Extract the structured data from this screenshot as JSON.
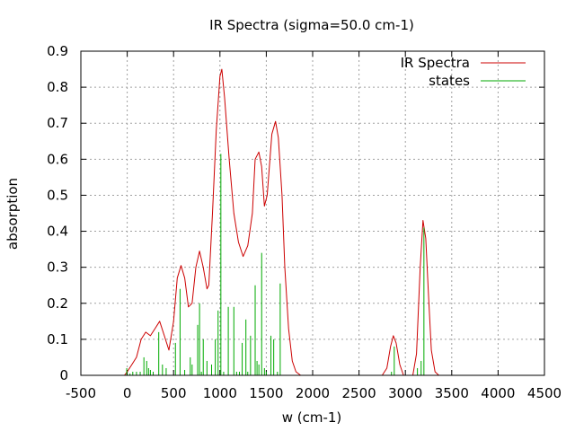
{
  "chart_data": {
    "type": "line",
    "title": "IR Spectra (sigma=50.0 cm-1)",
    "xlabel": "w (cm-1)",
    "ylabel": "absorption",
    "xlim": [
      -500,
      4500
    ],
    "ylim": [
      0,
      0.9
    ],
    "xticks": [
      -500,
      0,
      500,
      1000,
      1500,
      2000,
      2500,
      3000,
      3500,
      4000,
      4500
    ],
    "yticks": [
      0,
      0.1,
      0.2,
      0.3,
      0.4,
      0.5,
      0.6,
      0.7,
      0.8,
      0.9
    ],
    "xtick_labels": [
      "-500",
      "0",
      "500",
      "1000",
      "1500",
      "2000",
      "2500",
      "3000",
      "3500",
      "4000",
      "4500"
    ],
    "ytick_labels": [
      "0",
      "0.1",
      "0.2",
      "0.3",
      "0.4",
      "0.5",
      "0.6",
      "0.7",
      "0.8",
      "0.9"
    ],
    "grid": true,
    "legend_position": "top-right",
    "series": [
      {
        "name": "IR Spectra",
        "kind": "line",
        "color": "#cc0000",
        "points": [
          [
            -30,
            0.0
          ],
          [
            0,
            0.01
          ],
          [
            50,
            0.03
          ],
          [
            100,
            0.05
          ],
          [
            150,
            0.1
          ],
          [
            200,
            0.12
          ],
          [
            250,
            0.11
          ],
          [
            300,
            0.13
          ],
          [
            350,
            0.15
          ],
          [
            400,
            0.11
          ],
          [
            450,
            0.07
          ],
          [
            500,
            0.15
          ],
          [
            540,
            0.27
          ],
          [
            580,
            0.305
          ],
          [
            620,
            0.27
          ],
          [
            660,
            0.19
          ],
          [
            700,
            0.2
          ],
          [
            740,
            0.3
          ],
          [
            780,
            0.345
          ],
          [
            820,
            0.3
          ],
          [
            860,
            0.24
          ],
          [
            880,
            0.25
          ],
          [
            920,
            0.45
          ],
          [
            960,
            0.68
          ],
          [
            1000,
            0.83
          ],
          [
            1020,
            0.85
          ],
          [
            1050,
            0.77
          ],
          [
            1100,
            0.6
          ],
          [
            1150,
            0.45
          ],
          [
            1200,
            0.37
          ],
          [
            1250,
            0.33
          ],
          [
            1300,
            0.36
          ],
          [
            1350,
            0.45
          ],
          [
            1380,
            0.6
          ],
          [
            1420,
            0.62
          ],
          [
            1450,
            0.58
          ],
          [
            1480,
            0.47
          ],
          [
            1510,
            0.5
          ],
          [
            1560,
            0.67
          ],
          [
            1600,
            0.705
          ],
          [
            1630,
            0.66
          ],
          [
            1670,
            0.5
          ],
          [
            1700,
            0.3
          ],
          [
            1740,
            0.13
          ],
          [
            1780,
            0.04
          ],
          [
            1820,
            0.01
          ],
          [
            1870,
            0.0
          ],
          [
            2750,
            0.0
          ],
          [
            2800,
            0.02
          ],
          [
            2840,
            0.08
          ],
          [
            2870,
            0.11
          ],
          [
            2900,
            0.09
          ],
          [
            2940,
            0.03
          ],
          [
            2980,
            0.0
          ],
          [
            3080,
            0.0
          ],
          [
            3120,
            0.06
          ],
          [
            3160,
            0.3
          ],
          [
            3190,
            0.43
          ],
          [
            3220,
            0.38
          ],
          [
            3250,
            0.22
          ],
          [
            3280,
            0.07
          ],
          [
            3320,
            0.01
          ],
          [
            3360,
            0.0
          ]
        ]
      },
      {
        "name": "states",
        "kind": "sticks",
        "color": "#00aa00",
        "points": [
          [
            -5,
            0.02
          ],
          [
            30,
            0.005
          ],
          [
            60,
            0.01
          ],
          [
            100,
            0.01
          ],
          [
            140,
            0.01
          ],
          [
            180,
            0.05
          ],
          [
            210,
            0.04
          ],
          [
            230,
            0.02
          ],
          [
            250,
            0.015
          ],
          [
            280,
            0.01
          ],
          [
            340,
            0.12
          ],
          [
            380,
            0.03
          ],
          [
            420,
            0.02
          ],
          [
            520,
            0.09
          ],
          [
            570,
            0.24
          ],
          [
            620,
            0.015
          ],
          [
            680,
            0.05
          ],
          [
            700,
            0.03
          ],
          [
            760,
            0.14
          ],
          [
            780,
            0.2
          ],
          [
            800,
            0.01
          ],
          [
            820,
            0.1
          ],
          [
            860,
            0.04
          ],
          [
            910,
            0.03
          ],
          [
            950,
            0.1
          ],
          [
            980,
            0.18
          ],
          [
            1010,
            0.615
          ],
          [
            1040,
            0.01
          ],
          [
            1090,
            0.19
          ],
          [
            1150,
            0.19
          ],
          [
            1180,
            0.01
          ],
          [
            1210,
            0.01
          ],
          [
            1240,
            0.09
          ],
          [
            1280,
            0.155
          ],
          [
            1300,
            0.01
          ],
          [
            1330,
            0.11
          ],
          [
            1380,
            0.25
          ],
          [
            1400,
            0.04
          ],
          [
            1420,
            0.03
          ],
          [
            1450,
            0.34
          ],
          [
            1480,
            0.02
          ],
          [
            1500,
            0.01
          ],
          [
            1550,
            0.11
          ],
          [
            1580,
            0.1
          ],
          [
            1620,
            0.01
          ],
          [
            1650,
            0.255
          ],
          [
            2850,
            0.01
          ],
          [
            2880,
            0.08
          ],
          [
            3130,
            0.02
          ],
          [
            3170,
            0.04
          ],
          [
            3200,
            0.41
          ]
        ]
      }
    ]
  }
}
